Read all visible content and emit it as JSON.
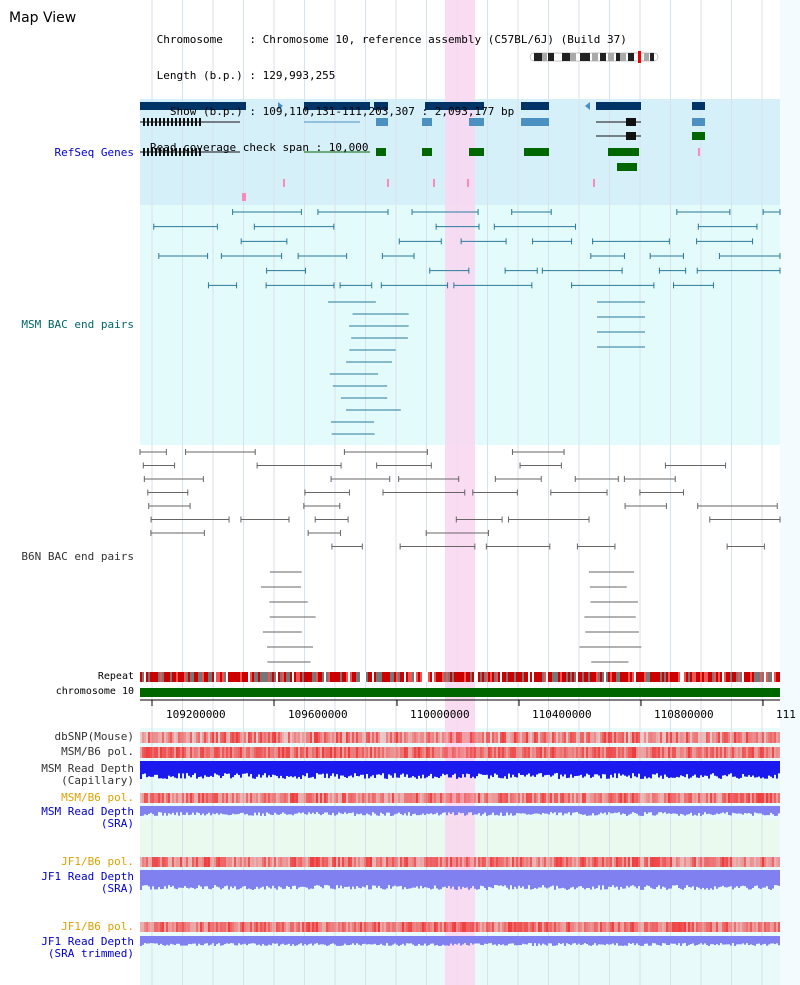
{
  "header": {
    "title": "Map View",
    "info_lines": [
      " Chromosome    : Chromosome 10, reference assembly (C57BL/6J) (Build 37)",
      " Length (b.p.) : 129,993,255",
      "   Show (b.p.) : 109,110,131-111,203,307 : 2,093,177 bp",
      "Read coverage check span : 10,000"
    ]
  },
  "tracks": {
    "refseq": "RefSeq Genes",
    "msm_bac": "MSM BAC end pairs",
    "b6n_bac": "B6N BAC end pairs",
    "repeat": "Repeat",
    "chromosome": "chromosome 10",
    "dbsnp": "dbSNP(Mouse)",
    "msm_b6_pol": "MSM/B6 pol.",
    "msm_depth_cap_1": "MSM Read Depth",
    "msm_depth_cap_2": "(Capillary)",
    "msm_b6_pol_2": "MSM/B6 pol.",
    "msm_depth_sra_1": "MSM Read Depth",
    "msm_depth_sra_2": "(SRA)",
    "jf1_b6_pol": "JF1/B6 pol.",
    "jf1_depth_sra_1": "JF1 Read Depth",
    "jf1_depth_sra_2": "(SRA)",
    "jf1_b6_pol_2": "JF1/B6 pol.",
    "jf1_depth_trim_1": "JF1 Read Depth",
    "jf1_depth_trim_2": "(SRA trimmed)"
  },
  "axis_ticks": [
    "109200000",
    "109600000",
    "110000000",
    "110400000",
    "110800000",
    "111"
  ],
  "colors": {
    "label_blue": "#0000cc",
    "label_teal": "#006666",
    "label_gray": "#333333",
    "label_orange": "#e0a000",
    "refseq_bg": "#d6f0fa",
    "msm_bg": "#e3fbfb",
    "highlight": "#f9d6f0",
    "gene_dark": "#003366",
    "gene_mid": "#4a90c0",
    "gene_green": "#006600",
    "chromosome": "#006600",
    "depth_blue": "#1a1aee",
    "depth_light": "#8080f0",
    "pol_red": "#ee2222"
  }
}
